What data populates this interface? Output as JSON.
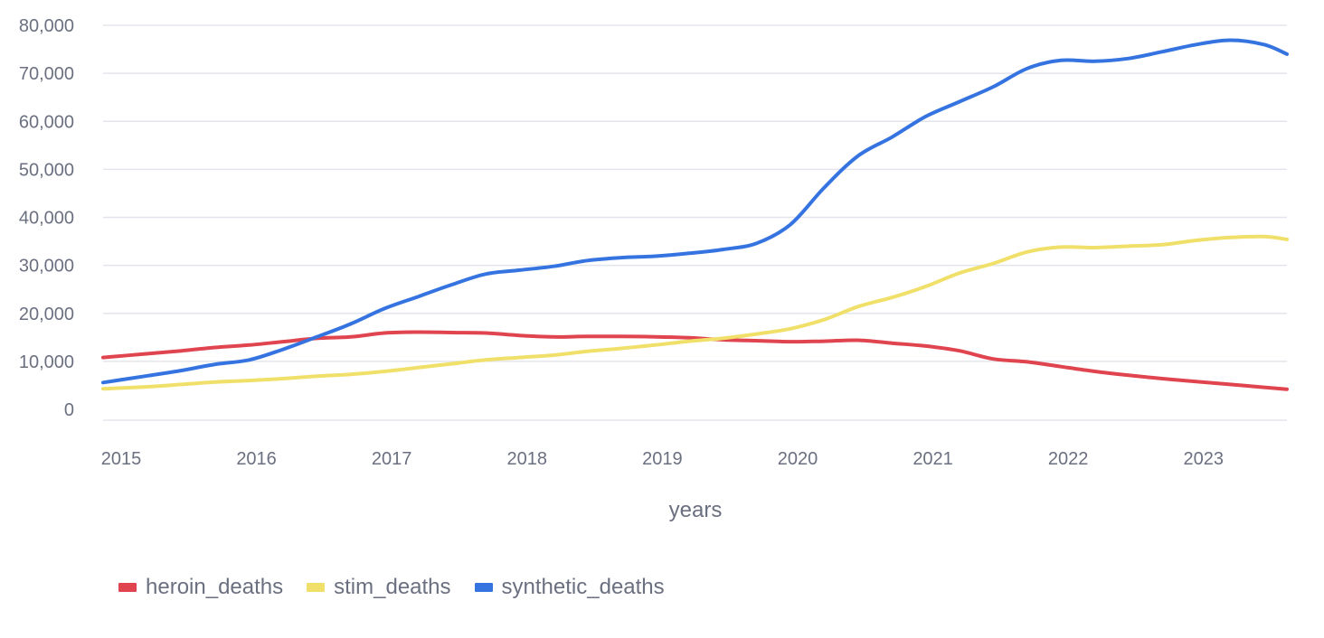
{
  "chart_data": {
    "type": "line",
    "xlabel": "years",
    "ylabel": "",
    "title": "",
    "xlim": [
      2014.92,
      2023.67
    ],
    "ylim": [
      0,
      80000
    ],
    "x_ticks": [
      "2015",
      "2016",
      "2017",
      "2018",
      "2019",
      "2020",
      "2021",
      "2022",
      "2023"
    ],
    "y_ticks": [
      "0",
      "10,000",
      "20,000",
      "30,000",
      "40,000",
      "50,000",
      "60,000",
      "70,000",
      "80,000"
    ],
    "grid": true,
    "legend_position": "bottom-left",
    "x": [
      2014.92,
      2015.25,
      2015.5,
      2015.75,
      2016.0,
      2016.25,
      2016.5,
      2016.75,
      2017.0,
      2017.25,
      2017.5,
      2017.75,
      2018.0,
      2018.25,
      2018.5,
      2018.75,
      2019.0,
      2019.25,
      2019.5,
      2019.75,
      2020.0,
      2020.25,
      2020.5,
      2020.75,
      2021.0,
      2021.25,
      2021.5,
      2021.75,
      2022.0,
      2022.25,
      2022.5,
      2022.75,
      2023.0,
      2023.25,
      2023.5,
      2023.67
    ],
    "series": [
      {
        "name": "heroin_deaths",
        "color": "#e0444f",
        "values": [
          10800,
          11600,
          12200,
          12900,
          13400,
          14100,
          14800,
          15100,
          15900,
          16100,
          16000,
          15900,
          15400,
          15100,
          15200,
          15200,
          15100,
          14900,
          14500,
          14300,
          14100,
          14200,
          14400,
          13800,
          13200,
          12200,
          10500,
          9900,
          8900,
          7900,
          7100,
          6400,
          5800,
          5200,
          4600,
          4200
        ]
      },
      {
        "name": "stim_deaths",
        "color": "#f0e06a",
        "values": [
          4300,
          4700,
          5200,
          5700,
          6000,
          6400,
          6900,
          7300,
          7900,
          8700,
          9500,
          10300,
          10800,
          11300,
          12100,
          12700,
          13400,
          14200,
          14800,
          15700,
          16800,
          18700,
          21400,
          23300,
          25600,
          28400,
          30400,
          32800,
          33800,
          33700,
          34000,
          34300,
          35200,
          35800,
          36000,
          35400
        ]
      },
      {
        "name": "synthetic_deaths",
        "color": "#3574e0",
        "values": [
          5600,
          7000,
          8100,
          9400,
          10300,
          12500,
          15100,
          17800,
          21000,
          23500,
          26000,
          28200,
          29000,
          29800,
          31000,
          31600,
          31900,
          32500,
          33300,
          34600,
          38500,
          46200,
          52800,
          56700,
          61000,
          64100,
          67200,
          71000,
          72700,
          72500,
          73100,
          74500,
          76000,
          76900,
          76000,
          74000
        ]
      }
    ]
  }
}
